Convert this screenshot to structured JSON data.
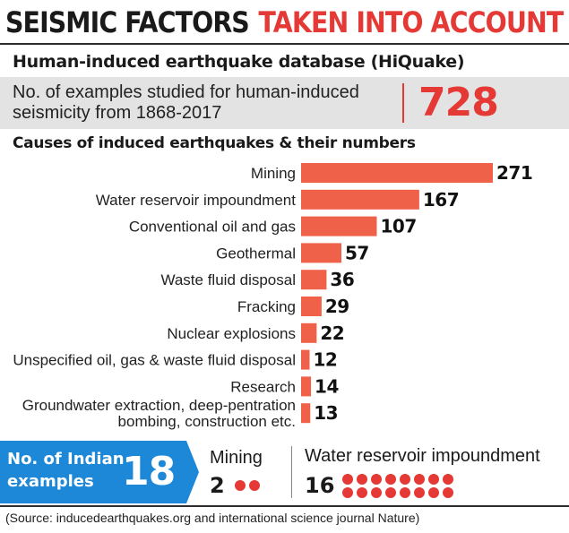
{
  "header": {
    "title_part1": "SEISMIC FACTORS",
    "title_part2": "TAKEN INTO ACCOUNT",
    "subtitle": "Human-induced earthquake database (HiQuake)"
  },
  "summary": {
    "line1": "No. of examples studied for human-induced",
    "line2": "seismicity from 1868-2017",
    "value": "728"
  },
  "colors": {
    "accent": "#e53935",
    "bar": "#f0614a",
    "blue": "#1e88d8"
  },
  "chart_data": {
    "type": "bar",
    "orientation": "horizontal",
    "title": "Causes of induced earthquakes & their numbers",
    "categories": [
      "Mining",
      "Water reservoir impoundment",
      "Conventional oil and gas",
      "Geothermal",
      "Waste fluid disposal",
      "Fracking",
      "Nuclear explosions",
      "Unspecified oil, gas & waste fluid disposal",
      "Research",
      "Groundwater extraction, deep-pentration bombing, construction etc."
    ],
    "category_lines": [
      [
        "Mining"
      ],
      [
        "Water reservoir impoundment"
      ],
      [
        "Conventional oil and gas"
      ],
      [
        "Geothermal"
      ],
      [
        "Waste fluid disposal"
      ],
      [
        "Fracking"
      ],
      [
        "Nuclear explosions"
      ],
      [
        "Unspecified oil, gas & waste fluid disposal"
      ],
      [
        "Research"
      ],
      [
        "Groundwater extraction, deep-pentration",
        "bombing, construction etc."
      ]
    ],
    "values": [
      271,
      167,
      107,
      57,
      36,
      29,
      22,
      12,
      14,
      13
    ]
  },
  "india": {
    "label_line1": "No. of Indian",
    "label_line2": "examples",
    "count": "18",
    "mining_label": "Mining",
    "mining_count": "2",
    "mining_dots": 2,
    "water_label": "Water reservoir impoundment",
    "water_count": "16",
    "water_dots": 16
  },
  "source": "(Source: inducedearthquakes.org and international science journal Nature)"
}
